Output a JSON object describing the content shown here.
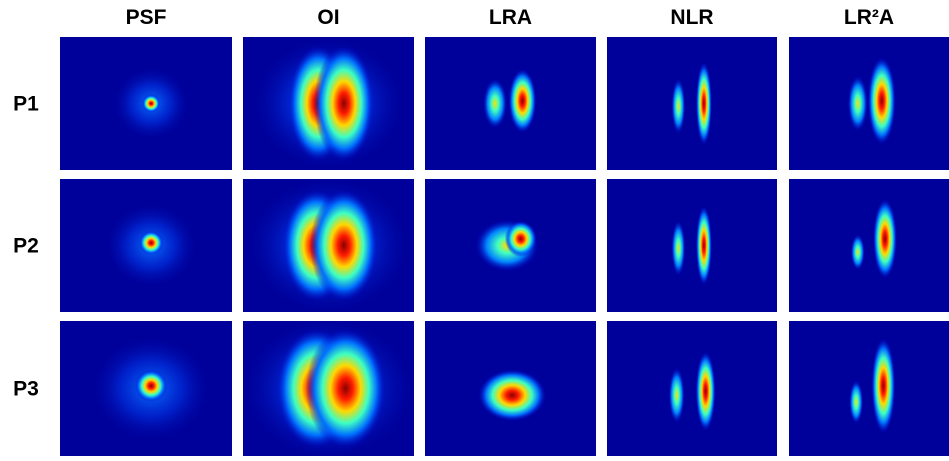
{
  "column_headers": [
    "PSF",
    "OI",
    "LRA",
    "NLR",
    "LR²A"
  ],
  "row_labels": [
    "P1",
    "P2",
    "P3"
  ]
}
